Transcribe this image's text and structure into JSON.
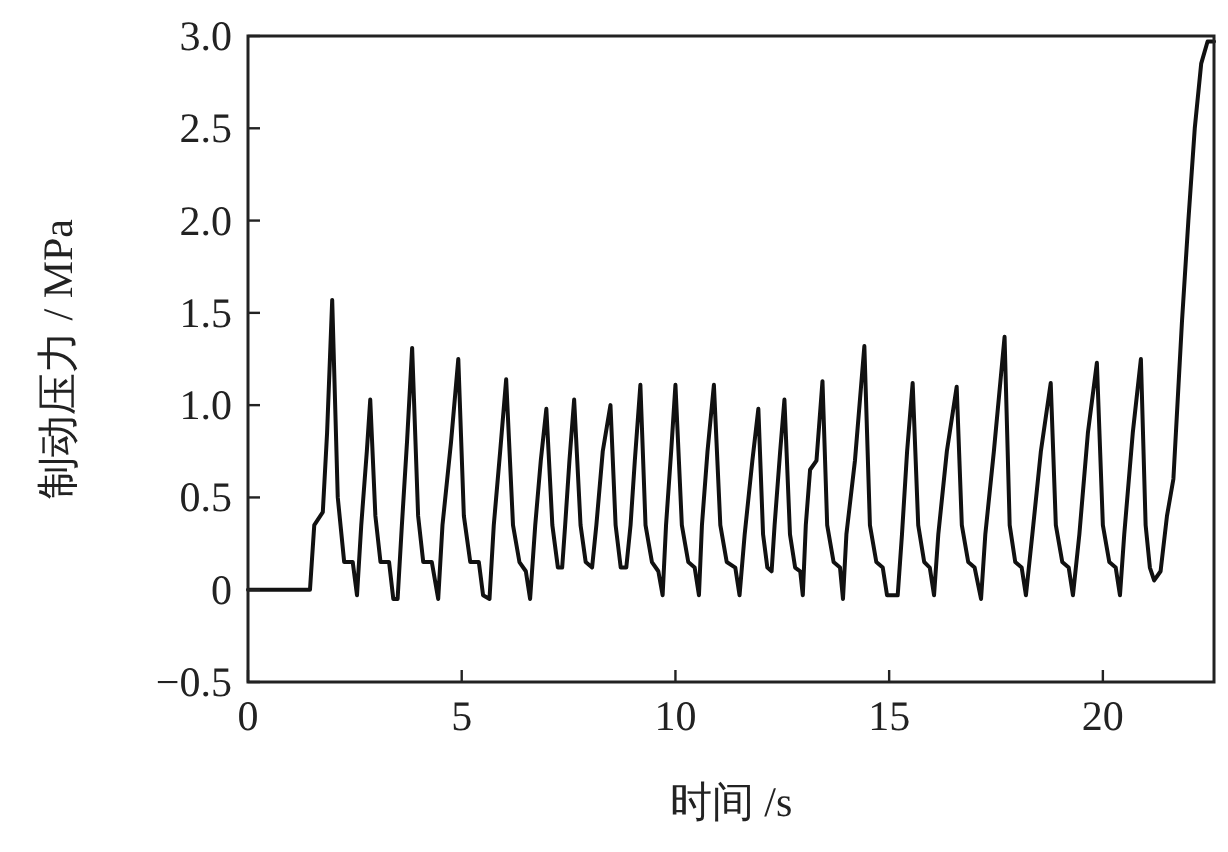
{
  "chart_data": {
    "type": "line",
    "xlabel": "时间 /s",
    "ylabel": "制动压力 / MPa",
    "xlim": [
      0,
      22.6
    ],
    "ylim": [
      -0.5,
      3.0
    ],
    "xticks": [
      0,
      5,
      10,
      15,
      20
    ],
    "yticks": [
      {
        "value": -0.5,
        "label": "−0.5"
      },
      0,
      {
        "value": 0.5,
        "label": "0.5"
      },
      {
        "value": 1,
        "label": "1.0"
      },
      {
        "value": 1.5,
        "label": "1.5"
      },
      {
        "value": 2,
        "label": "2.0"
      },
      {
        "value": 2.5,
        "label": "2.5"
      },
      {
        "value": 3,
        "label": "3.0"
      }
    ],
    "x": [
      0,
      1.45,
      1.55,
      1.75,
      1.85,
      1.97,
      2.1,
      2.25,
      2.45,
      2.55,
      2.65,
      2.78,
      2.86,
      2.98,
      3.1,
      3.3,
      3.4,
      3.5,
      3.6,
      3.72,
      3.84,
      3.98,
      4.1,
      4.3,
      4.45,
      4.55,
      4.75,
      4.92,
      5.05,
      5.2,
      5.4,
      5.5,
      5.65,
      5.75,
      5.9,
      6.04,
      6.2,
      6.35,
      6.5,
      6.6,
      6.72,
      6.85,
      6.98,
      7.12,
      7.25,
      7.35,
      7.42,
      7.52,
      7.63,
      7.78,
      7.9,
      8.05,
      8.15,
      8.3,
      8.48,
      8.6,
      8.72,
      8.85,
      8.95,
      9.05,
      9.18,
      9.3,
      9.45,
      9.6,
      9.7,
      9.78,
      9.9,
      10.0,
      10.15,
      10.3,
      10.45,
      10.55,
      10.62,
      10.75,
      10.9,
      11.05,
      11.2,
      11.4,
      11.5,
      11.62,
      11.8,
      11.94,
      12.05,
      12.15,
      12.25,
      12.32,
      12.45,
      12.55,
      12.68,
      12.8,
      12.92,
      12.98,
      13.05,
      13.15,
      13.3,
      13.44,
      13.55,
      13.7,
      13.85,
      13.92,
      14.0,
      14.2,
      14.42,
      14.55,
      14.7,
      14.85,
      14.95,
      15.2,
      15.3,
      15.42,
      15.55,
      15.68,
      15.82,
      15.95,
      16.05,
      16.15,
      16.35,
      16.58,
      16.7,
      16.85,
      17.0,
      17.15,
      17.25,
      17.45,
      17.7,
      17.82,
      17.95,
      18.1,
      18.2,
      18.35,
      18.55,
      18.78,
      18.9,
      19.05,
      19.2,
      19.3,
      19.45,
      19.65,
      19.86,
      20.0,
      20.15,
      20.3,
      20.4,
      20.5,
      20.7,
      20.89,
      21.0,
      21.1,
      21.2,
      21.35,
      21.5,
      21.65,
      21.85,
      22.0,
      22.15,
      22.3,
      22.45,
      22.6
    ],
    "series": [
      {
        "color": "#111111",
        "values": [
          0,
          0,
          0.35,
          0.42,
          0.85,
          1.57,
          0.5,
          0.15,
          0.15,
          -0.03,
          0.35,
          0.75,
          1.03,
          0.4,
          0.15,
          0.15,
          -0.05,
          -0.05,
          0.35,
          0.8,
          1.31,
          0.4,
          0.15,
          0.15,
          -0.05,
          0.35,
          0.8,
          1.25,
          0.4,
          0.15,
          0.15,
          -0.03,
          -0.05,
          0.35,
          0.75,
          1.14,
          0.35,
          0.15,
          0.1,
          -0.05,
          0.35,
          0.7,
          0.98,
          0.35,
          0.12,
          0.12,
          0.35,
          0.7,
          1.03,
          0.35,
          0.15,
          0.12,
          0.35,
          0.75,
          1.0,
          0.35,
          0.12,
          0.12,
          0.35,
          0.7,
          1.11,
          0.35,
          0.15,
          0.1,
          -0.03,
          0.35,
          0.75,
          1.11,
          0.35,
          0.15,
          0.12,
          -0.03,
          0.35,
          0.75,
          1.11,
          0.35,
          0.15,
          0.12,
          -0.03,
          0.3,
          0.7,
          0.98,
          0.3,
          0.12,
          0.1,
          0.35,
          0.75,
          1.03,
          0.3,
          0.12,
          0.1,
          -0.03,
          0.35,
          0.65,
          0.7,
          1.13,
          0.35,
          0.15,
          0.12,
          -0.05,
          0.3,
          0.7,
          1.32,
          0.35,
          0.15,
          0.12,
          -0.03,
          -0.03,
          0.3,
          0.75,
          1.12,
          0.35,
          0.15,
          0.12,
          -0.03,
          0.3,
          0.75,
          1.1,
          0.35,
          0.15,
          0.12,
          -0.05,
          0.3,
          0.75,
          1.37,
          0.35,
          0.15,
          0.12,
          -0.03,
          0.3,
          0.75,
          1.12,
          0.35,
          0.15,
          0.12,
          -0.03,
          0.3,
          0.85,
          1.23,
          0.35,
          0.15,
          0.12,
          -0.03,
          0.3,
          0.85,
          1.25,
          0.35,
          0.12,
          0.05,
          0.1,
          0.4,
          0.6,
          1.45,
          2.0,
          2.5,
          2.85,
          2.97,
          2.97
        ]
      }
    ]
  }
}
